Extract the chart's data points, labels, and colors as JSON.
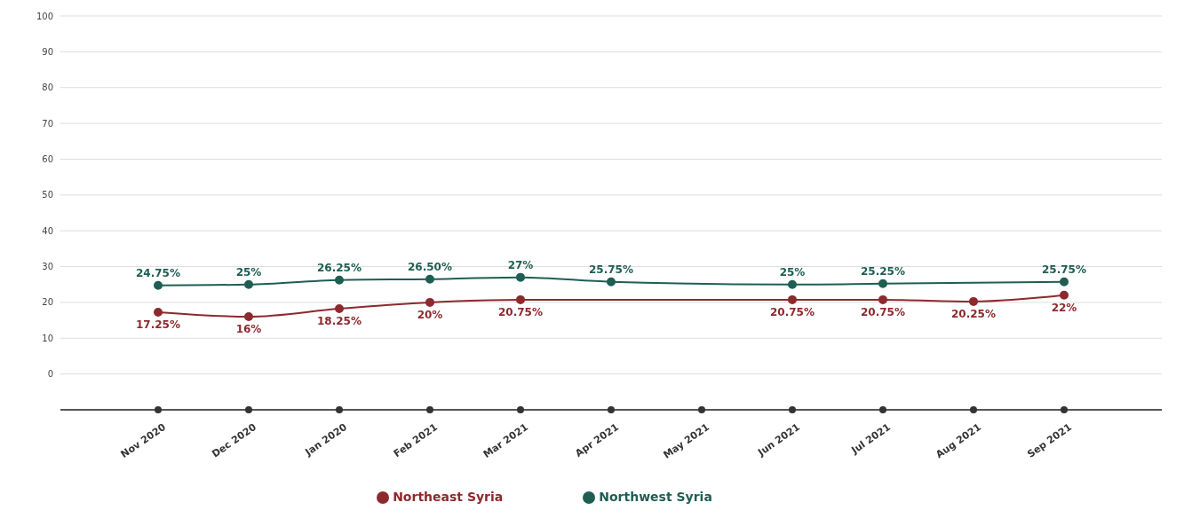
{
  "chart_data": {
    "type": "line",
    "categories": [
      "Nov 2020",
      "Dec 2020",
      "Jan 2020",
      "Feb 2021",
      "Mar 2021",
      "Apr 2021",
      "May 2021",
      "Jun 2021",
      "Jul 2021",
      "Aug 2021",
      "Sep 2021"
    ],
    "series": [
      {
        "name": "Northeast Syria",
        "color": "#8c2a2e",
        "values": [
          17.25,
          16,
          18.25,
          20,
          20.75,
          null,
          null,
          20.75,
          20.75,
          20.25,
          22
        ],
        "value_labels": [
          "17.25%",
          "16%",
          "18.25%",
          "20%",
          "20.75%",
          null,
          null,
          "20.75%",
          "20.75%",
          "20.25%",
          "22%"
        ]
      },
      {
        "name": "Northwest Syria",
        "color": "#1f5e52",
        "values": [
          24.75,
          25,
          26.25,
          26.5,
          27,
          25.75,
          null,
          25,
          25.25,
          null,
          25.75
        ],
        "value_labels": [
          "24.75%",
          "25%",
          "26.25%",
          "26.50%",
          "27%",
          "25.75%",
          null,
          "25%",
          "25.25%",
          null,
          "25.75%"
        ]
      }
    ],
    "ylim": [
      -10,
      100
    ],
    "yticks": [
      0,
      10,
      20,
      30,
      40,
      50,
      60,
      70,
      80,
      90,
      100
    ],
    "grid": "y",
    "legend": "bottom",
    "marker": "circle",
    "line_style": "solid"
  }
}
